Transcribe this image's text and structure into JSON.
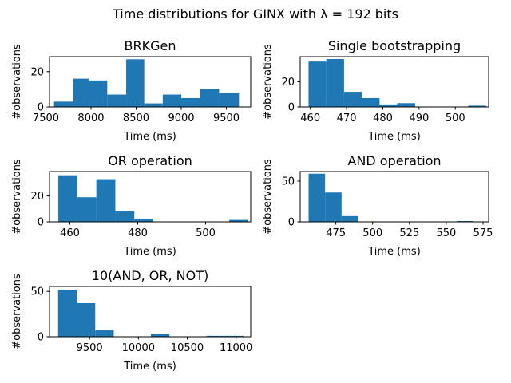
{
  "figure": {
    "suptitle": "Time distributions for GINX with λ = 192 bits"
  },
  "chart_data": [
    {
      "type": "bar",
      "title": "BRKGen",
      "xlabel": "Time (ms)",
      "ylabel": "#observations",
      "xlim": [
        7540,
        9770
      ],
      "ylim": [
        0,
        28.5
      ],
      "xticks": [
        7500,
        8000,
        8500,
        9000,
        9500
      ],
      "yticks": [
        0,
        20
      ],
      "bin_edges": [
        7590,
        7805,
        7980,
        8180,
        8390,
        8590,
        8795,
        9000,
        9210,
        9420,
        9640
      ],
      "values": [
        3,
        16,
        15,
        7,
        27,
        2,
        7,
        5,
        10,
        8
      ]
    },
    {
      "type": "bar",
      "title": "Single bootstrapping",
      "xlabel": "Time (ms)",
      "ylabel": "#observations",
      "xlim": [
        457.2,
        509.2
      ],
      "ylim": [
        0,
        39.9
      ],
      "xticks": [
        460,
        470,
        480,
        490,
        500
      ],
      "yticks": [
        0,
        20
      ],
      "bin_edges": [
        459.5,
        464.4,
        469.3,
        474.2,
        479.1,
        484.0,
        488.9,
        493.8,
        498.7,
        503.6,
        508.5
      ],
      "values": [
        36,
        38,
        12,
        7,
        2,
        3,
        0,
        0,
        0,
        1
      ]
    },
    {
      "type": "bar",
      "title": "OR operation",
      "xlabel": "Time (ms)",
      "ylabel": "#observations",
      "xlim": [
        454,
        513.3
      ],
      "ylim": [
        0,
        38.9
      ],
      "xticks": [
        460,
        480,
        500
      ],
      "yticks": [
        0,
        20
      ],
      "bin_edges": [
        456.6,
        462.2,
        467.8,
        473.4,
        479.0,
        484.6,
        490.2,
        495.8,
        501.4,
        507.0,
        512.6
      ],
      "values": [
        36,
        19,
        33,
        8,
        2.5,
        0,
        0,
        0,
        0,
        1.5
      ]
    },
    {
      "type": "bar",
      "title": "AND operation",
      "xlabel": "Time (ms)",
      "ylabel": "#observations",
      "xlim": [
        450.8,
        578.8
      ],
      "ylim": [
        0,
        61.7
      ],
      "xticks": [
        475,
        500,
        525,
        550,
        575
      ],
      "yticks": [
        0,
        50
      ],
      "bin_edges": [
        456.5,
        467.7,
        478.9,
        490.1,
        501.3,
        512.5,
        523.7,
        534.9,
        546.1,
        557.3,
        568.5
      ],
      "values": [
        59,
        36,
        7,
        0,
        0,
        0,
        0,
        0,
        0,
        1
      ]
    },
    {
      "type": "bar",
      "title": "10(AND, OR, NOT)",
      "xlabel": "Time (ms)",
      "ylabel": "#observations",
      "xlim": [
        9090,
        11150
      ],
      "ylim": [
        0,
        55.5
      ],
      "xticks": [
        9500,
        10000,
        10500,
        11000
      ],
      "yticks": [
        0,
        50
      ],
      "bin_edges": [
        9178,
        9368,
        9558,
        9748,
        9938,
        10128,
        10318,
        10508,
        10698,
        10888,
        11078
      ],
      "values": [
        52,
        37,
        7,
        0,
        0,
        3,
        0,
        0,
        1,
        1
      ]
    }
  ]
}
